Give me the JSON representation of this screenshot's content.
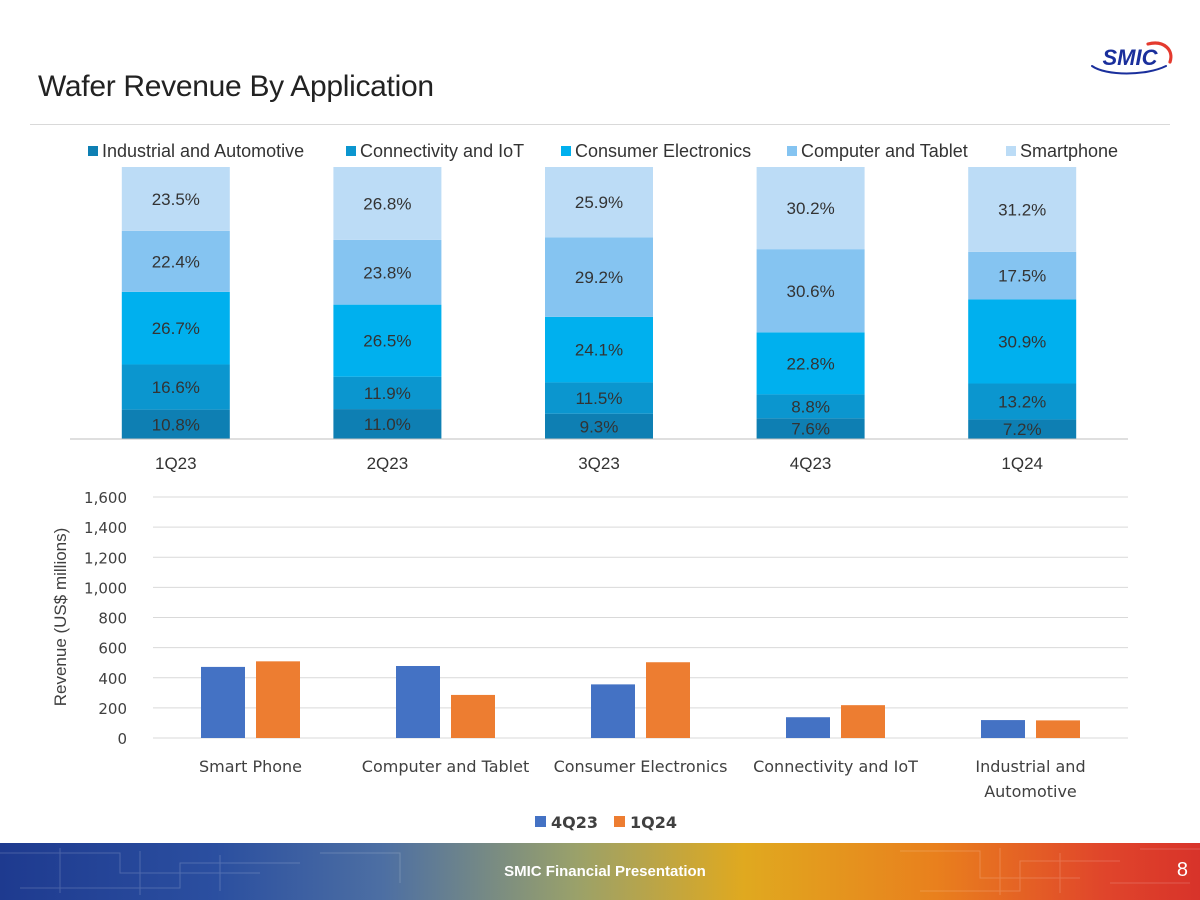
{
  "slide": {
    "title": "Wafer Revenue By Application",
    "logo_text": "SMIC",
    "footer_text": "SMIC Financial Presentation",
    "page_number": "8"
  },
  "colors": {
    "industrial": "#0e7fb3",
    "connectivity": "#0b96cf",
    "consumer": "#00b0ee",
    "computer": "#85c4f1",
    "smartphone": "#bcdcf6",
    "q4q23": "#4472c4",
    "q1q24": "#ed7d31",
    "logo_blue": "#1a2f9c",
    "logo_red": "#e43a2e"
  },
  "chart_data": [
    {
      "type": "bar",
      "stacked": true,
      "percent": true,
      "categories": [
        "1Q23",
        "2Q23",
        "3Q23",
        "4Q23",
        "1Q24"
      ],
      "series": [
        {
          "name": "Industrial and Automotive",
          "values": [
            10.8,
            11.0,
            9.3,
            7.6,
            7.2
          ],
          "labels": [
            "10.8%",
            "11.0%",
            "9.3%",
            "7.6%",
            "7.2%"
          ]
        },
        {
          "name": "Connectivity and IoT",
          "values": [
            16.6,
            11.9,
            11.5,
            8.8,
            13.2
          ],
          "labels": [
            "16.6%",
            "11.9%",
            "11.5%",
            "8.8%",
            "13.2%"
          ]
        },
        {
          "name": "Consumer Electronics",
          "values": [
            26.7,
            26.5,
            24.1,
            22.8,
            30.9
          ],
          "labels": [
            "26.7%",
            "26.5%",
            "24.1%",
            "22.8%",
            "30.9%"
          ]
        },
        {
          "name": "Computer and Tablet",
          "values": [
            22.4,
            23.8,
            29.2,
            30.6,
            17.5
          ],
          "labels": [
            "22.4%",
            "23.8%",
            "29.2%",
            "30.6%",
            "17.5%"
          ]
        },
        {
          "name": "Smartphone",
          "values": [
            23.5,
            26.8,
            25.9,
            30.2,
            31.2
          ],
          "labels": [
            "23.5%",
            "26.8%",
            "25.9%",
            "30.2%",
            "31.2%"
          ]
        }
      ],
      "legend": "top"
    },
    {
      "type": "bar",
      "categories": [
        [
          "Smart Phone"
        ],
        [
          "Computer and Tablet"
        ],
        [
          "Consumer Electronics"
        ],
        [
          "Connectivity and IoT"
        ],
        [
          "Industrial and",
          "Automotive"
        ]
      ],
      "series": [
        {
          "name": "4Q23",
          "values": [
            472,
            478,
            356,
            138,
            119
          ]
        },
        {
          "name": "1Q24",
          "values": [
            509,
            286,
            503,
            218,
            117
          ]
        }
      ],
      "ylabel": "Revenue (US$  millions)",
      "ylim": [
        0,
        1600
      ],
      "yticks": [
        0,
        200,
        400,
        600,
        800,
        1000,
        1200,
        1400,
        1600
      ],
      "ytick_labels": [
        "0",
        "200",
        "400",
        "600",
        "800",
        "1,000",
        "1,200",
        "1,400",
        "1,600"
      ],
      "grid": true,
      "legend": "bottom"
    }
  ]
}
